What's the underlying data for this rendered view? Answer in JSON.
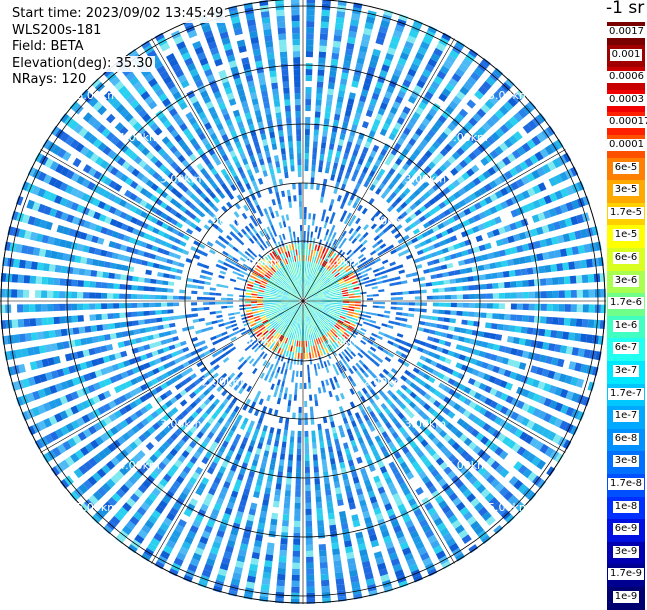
{
  "info": {
    "start_time": "Start time: 2023/09/02 13:45:49",
    "instrument": "WLS200s-181",
    "field": "Field: BETA",
    "elevation": "Elevation(deg): 35.30",
    "nrays": "NRays: 120"
  },
  "unit_label": "-1 sr",
  "range_ring_labels": [
    "1.0km",
    "2.00km",
    "3.00km",
    "4.00km",
    "5.00km"
  ],
  "colorbar": [
    {
      "label": "0.0017",
      "color": "#7a0000"
    },
    {
      "label": "0.001",
      "color": "#a00000"
    },
    {
      "label": "0.0006",
      "color": "#c80000"
    },
    {
      "label": "0.0003",
      "color": "#f00000"
    },
    {
      "label": "0.00017",
      "color": "#ff2000"
    },
    {
      "label": "0.0001",
      "color": "#ff5000"
    },
    {
      "label": "6e-5",
      "color": "#ff8000"
    },
    {
      "label": "3e-5",
      "color": "#ffa800"
    },
    {
      "label": "1.7e-5",
      "color": "#ffd000"
    },
    {
      "label": "1e-5",
      "color": "#ffff00"
    },
    {
      "label": "6e-6",
      "color": "#d8ff20"
    },
    {
      "label": "3e-6",
      "color": "#a8ff50"
    },
    {
      "label": "1.7e-6",
      "color": "#70ff88"
    },
    {
      "label": "1e-6",
      "color": "#40ffc0"
    },
    {
      "label": "6e-7",
      "color": "#20fff0"
    },
    {
      "label": "3e-7",
      "color": "#00e8ff"
    },
    {
      "label": "1.7e-7",
      "color": "#00c8ff"
    },
    {
      "label": "1e-7",
      "color": "#00a8ff"
    },
    {
      "label": "6e-8",
      "color": "#0090ff"
    },
    {
      "label": "3e-8",
      "color": "#0070ff"
    },
    {
      "label": "1.7e-8",
      "color": "#0050ff"
    },
    {
      "label": "1e-8",
      "color": "#0030ff"
    },
    {
      "label": "6e-9",
      "color": "#0010e0"
    },
    {
      "label": "3e-9",
      "color": "#0000b0"
    },
    {
      "label": "1.7e-9",
      "color": "#000090"
    },
    {
      "label": "1e-9",
      "color": "#000070"
    }
  ]
}
